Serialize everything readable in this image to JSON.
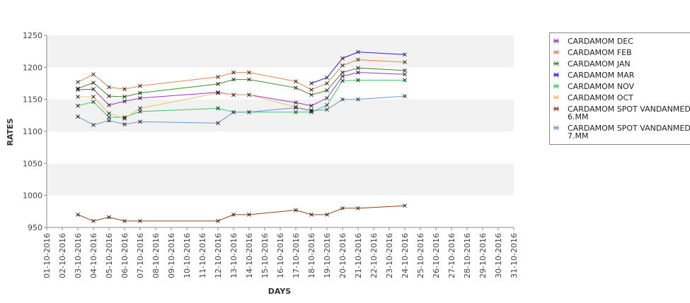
{
  "chart_data": {
    "type": "line",
    "xlabel": "DAYS",
    "ylabel": "RATES",
    "ylim": [
      950,
      1250
    ],
    "yticks": [
      950,
      1000,
      1050,
      1100,
      1150,
      1200,
      1250
    ],
    "grid": false,
    "alternate_bands": true,
    "legend_position": "right",
    "x_categories": [
      "01-10-2016",
      "02-10-2016",
      "03-10-2016",
      "04-10-2016",
      "05-10-2016",
      "06-10-2016",
      "07-10-2016",
      "08-10-2016",
      "09-10-2016",
      "10-10-2016",
      "11-10-2016",
      "12-10-2016",
      "13-10-2016",
      "14-10-2016",
      "15-10-2016",
      "16-10-2016",
      "17-10-2016",
      "18-10-2016",
      "19-10-2016",
      "20-10-2016",
      "21-10-2016",
      "22-10-2016",
      "23-10-2016",
      "24-10-2016",
      "25-10-2016",
      "26-10-2016",
      "27-10-2016",
      "28-10-2016",
      "29-10-2016",
      "30-10-2016",
      "31-10-2016"
    ],
    "series": [
      {
        "name": "CARDAMOM DEC",
        "color": "#9933cc",
        "x": [
          "03-10-2016",
          "04-10-2016",
          "05-10-2016",
          "06-10-2016",
          "07-10-2016",
          "12-10-2016",
          "13-10-2016",
          "14-10-2016",
          "17-10-2016",
          "18-10-2016",
          "19-10-2016",
          "20-10-2016",
          "21-10-2016",
          "24-10-2016"
        ],
        "y": [
          1165,
          1166,
          1141,
          1147,
          1152,
          1161,
          1157,
          1157,
          1145,
          1140,
          1152,
          1186,
          1192,
          1189
        ]
      },
      {
        "name": "CARDAMOM FEB",
        "color": "#e8834a",
        "x": [
          "03-10-2016",
          "04-10-2016",
          "05-10-2016",
          "06-10-2016",
          "07-10-2016",
          "12-10-2016",
          "13-10-2016",
          "14-10-2016",
          "17-10-2016",
          "18-10-2016",
          "19-10-2016",
          "20-10-2016",
          "21-10-2016",
          "24-10-2016"
        ],
        "y": [
          1177,
          1189,
          1169,
          1166,
          1171,
          1185,
          1192,
          1192,
          1178,
          1165,
          1175,
          1203,
          1212,
          1208
        ]
      },
      {
        "name": "CARDAMOM JAN",
        "color": "#3c8d2f",
        "x": [
          "03-10-2016",
          "04-10-2016",
          "05-10-2016",
          "06-10-2016",
          "07-10-2016",
          "12-10-2016",
          "13-10-2016",
          "14-10-2016",
          "17-10-2016",
          "18-10-2016",
          "19-10-2016",
          "20-10-2016",
          "21-10-2016",
          "24-10-2016"
        ],
        "y": [
          1167,
          1176,
          1155,
          1154,
          1160,
          1174,
          1181,
          1181,
          1168,
          1157,
          1164,
          1192,
          1199,
          1195
        ]
      },
      {
        "name": "CARDAMOM MAR",
        "color": "#2a1fd4",
        "x": [
          "18-10-2016",
          "19-10-2016",
          "20-10-2016",
          "21-10-2016",
          "24-10-2016"
        ],
        "y": [
          1175,
          1184,
          1214,
          1224,
          1220
        ]
      },
      {
        "name": "CARDAMOM NOV",
        "color": "#33cc66",
        "x": [
          "03-10-2016",
          "04-10-2016",
          "05-10-2016",
          "06-10-2016",
          "07-10-2016",
          "12-10-2016",
          "13-10-2016",
          "14-10-2016",
          "17-10-2016",
          "18-10-2016",
          "19-10-2016",
          "20-10-2016",
          "21-10-2016",
          "24-10-2016"
        ],
        "y": [
          1140,
          1146,
          1122,
          1122,
          1131,
          1136,
          1130,
          1130,
          1130,
          1130,
          1141,
          1179,
          1180,
          1180
        ]
      },
      {
        "name": "CARDAMOM OCT",
        "color": "#e8c06a",
        "x": [
          "03-10-2016",
          "04-10-2016",
          "05-10-2016",
          "06-10-2016",
          "07-10-2016",
          "12-10-2016",
          "13-10-2016",
          "14-10-2016",
          "17-10-2016",
          "18-10-2016"
        ],
        "y": [
          1154,
          1154,
          1128,
          1120,
          1136,
          1160,
          1157,
          1157,
          1138,
          1133
        ]
      },
      {
        "name": "CARDAMOM SPOT VANDANMEDU 6.MM",
        "color": "#8b4513",
        "x": [
          "03-10-2016",
          "04-10-2016",
          "05-10-2016",
          "06-10-2016",
          "07-10-2016",
          "12-10-2016",
          "13-10-2016",
          "14-10-2016",
          "17-10-2016",
          "18-10-2016",
          "19-10-2016",
          "20-10-2016",
          "21-10-2016",
          "24-10-2016"
        ],
        "y": [
          970,
          960,
          966,
          960,
          960,
          960,
          970,
          970,
          977,
          970,
          970,
          980,
          980,
          984
        ]
      },
      {
        "name": "CARDAMOM SPOT VANDANMEDU 7.MM",
        "color": "#6699cc",
        "x": [
          "03-10-2016",
          "04-10-2016",
          "05-10-2016",
          "06-10-2016",
          "07-10-2016",
          "12-10-2016",
          "13-10-2016",
          "14-10-2016",
          "17-10-2016",
          "18-10-2016",
          "19-10-2016",
          "20-10-2016",
          "21-10-2016",
          "24-10-2016"
        ],
        "y": [
          1123,
          1110,
          1117,
          1111,
          1115,
          1113,
          1130,
          1130,
          1137,
          1132,
          1134,
          1150,
          1150,
          1155
        ]
      }
    ],
    "legend_lines": [
      [
        "CARDAMOM DEC"
      ],
      [
        "CARDAMOM FEB"
      ],
      [
        "CARDAMOM JAN"
      ],
      [
        "CARDAMOM MAR"
      ],
      [
        "CARDAMOM NOV"
      ],
      [
        "CARDAMOM OCT"
      ],
      [
        "CARDAMOM SPOT VANDANMEDU",
        "6.MM"
      ],
      [
        "CARDAMOM SPOT VANDANMEDU",
        "7.MM"
      ]
    ]
  }
}
